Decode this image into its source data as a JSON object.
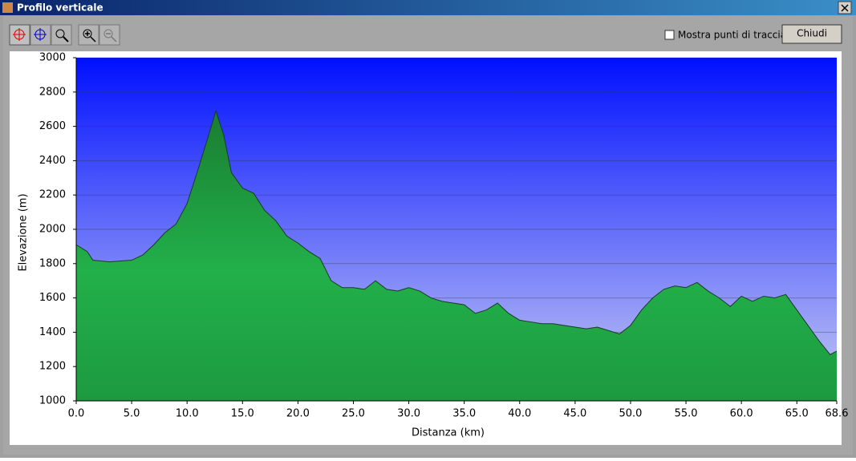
{
  "window": {
    "title": "Profilo verticale",
    "checkbox_label": "Mostra punti di traccia",
    "button": "Chiudi"
  },
  "chart_data": {
    "type": "area",
    "xlabel": "Distanza (km)",
    "ylabel": "Elevazione (m)",
    "x": [
      0,
      1,
      1.5,
      3,
      5,
      6,
      7,
      8,
      9,
      10,
      11,
      12,
      12.6,
      13.3,
      14,
      15,
      16,
      17,
      18,
      19,
      20,
      21,
      22,
      23,
      24,
      25,
      26,
      27,
      28,
      29,
      30,
      31,
      32,
      33,
      34,
      35,
      36,
      37,
      38,
      39,
      40,
      41,
      42,
      43,
      44,
      45,
      46,
      47,
      48,
      49,
      50,
      51,
      52,
      53,
      54,
      55,
      56,
      57,
      58,
      59,
      60,
      61,
      62,
      63,
      64,
      65,
      66,
      67,
      68,
      68.6
    ],
    "values": [
      1910,
      1870,
      1820,
      1810,
      1820,
      1850,
      1910,
      1980,
      2030,
      2150,
      2350,
      2560,
      2690,
      2550,
      2330,
      2240,
      2210,
      2110,
      2050,
      1960,
      1920,
      1870,
      1830,
      1700,
      1660,
      1660,
      1650,
      1700,
      1650,
      1640,
      1660,
      1640,
      1600,
      1580,
      1570,
      1560,
      1510,
      1530,
      1570,
      1510,
      1470,
      1460,
      1450,
      1450,
      1440,
      1430,
      1420,
      1430,
      1410,
      1390,
      1440,
      1530,
      1600,
      1650,
      1670,
      1660,
      1690,
      1640,
      1600,
      1550,
      1610,
      1580,
      1610,
      1600,
      1620,
      1530,
      1440,
      1350,
      1270,
      1290
    ],
    "xlim": [
      0,
      68.6
    ],
    "ylim": [
      1000,
      3000
    ],
    "xticks": [
      {
        "value": 0,
        "label": "0.0"
      },
      {
        "value": 5,
        "label": "5.0"
      },
      {
        "value": 10,
        "label": "10.0"
      },
      {
        "value": 15,
        "label": "15.0"
      },
      {
        "value": 20,
        "label": "20.0"
      },
      {
        "value": 25,
        "label": "25.0"
      },
      {
        "value": 30,
        "label": "30.0"
      },
      {
        "value": 35,
        "label": "35.0"
      },
      {
        "value": 40,
        "label": "40.0"
      },
      {
        "value": 45,
        "label": "45.0"
      },
      {
        "value": 50,
        "label": "50.0"
      },
      {
        "value": 55,
        "label": "55.0"
      },
      {
        "value": 60,
        "label": "60.0"
      },
      {
        "value": 65,
        "label": "65.0"
      },
      68.6
    ],
    "yticks": [
      1000,
      1200,
      1400,
      1600,
      1800,
      2000,
      2200,
      2400,
      2600,
      2800,
      3000
    ],
    "grid": true,
    "color": "#1fa546"
  }
}
